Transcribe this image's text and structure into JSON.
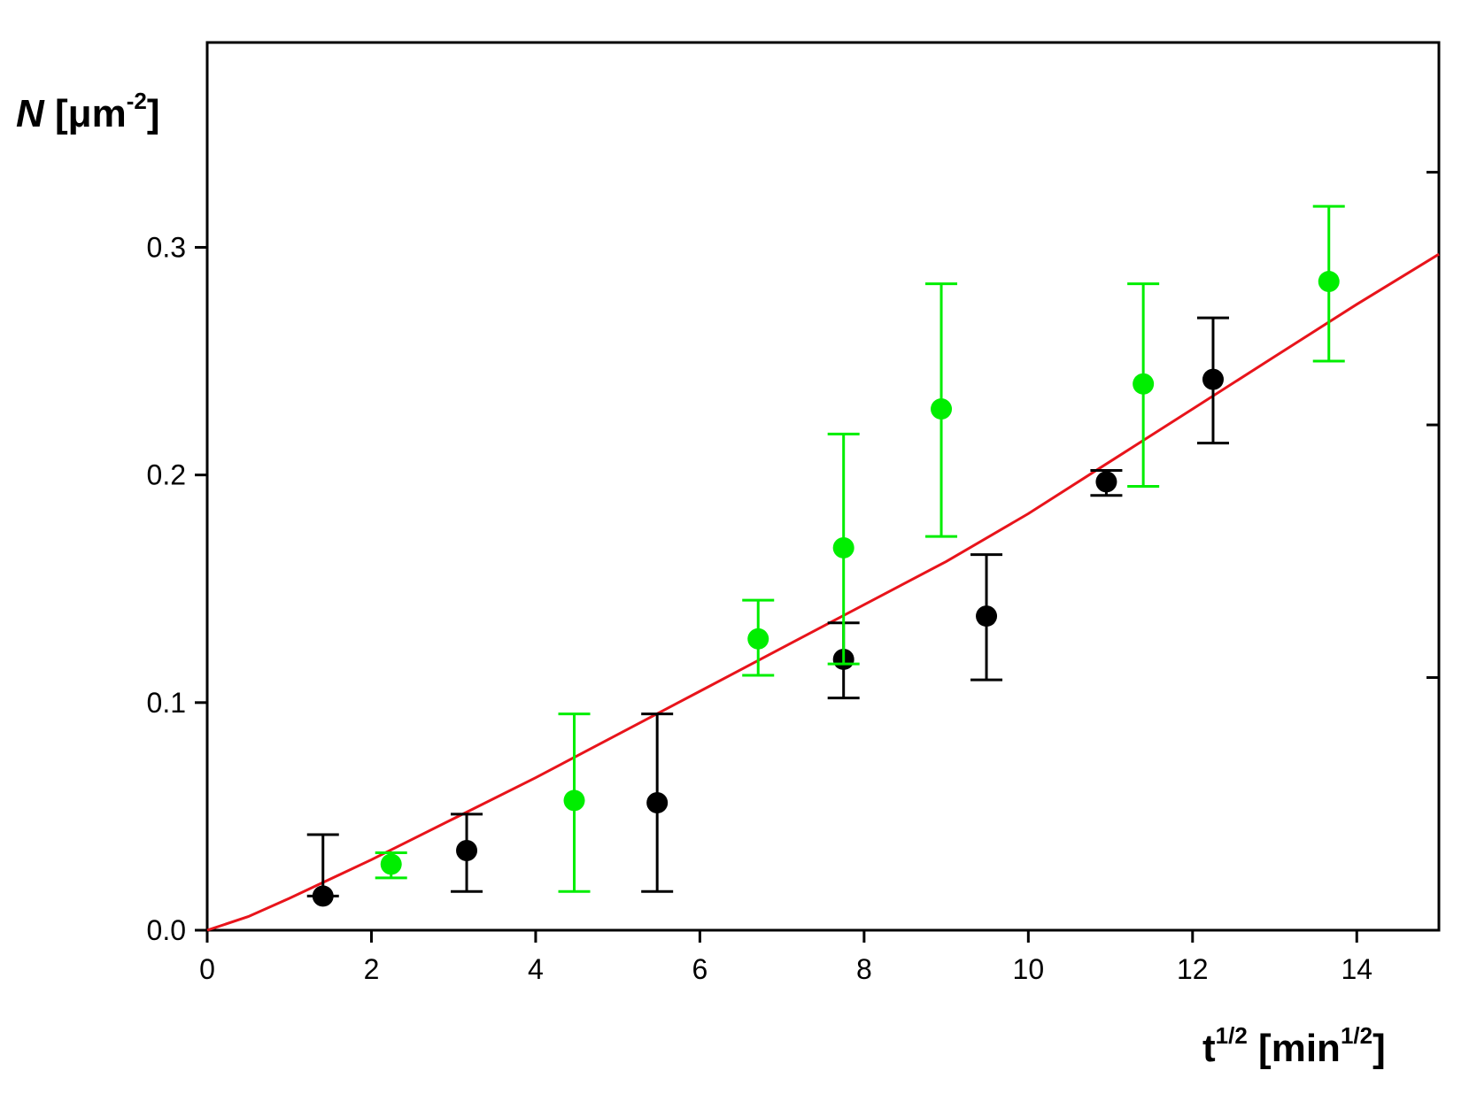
{
  "chart_data": {
    "type": "scatter",
    "ylabel": {
      "var": "N",
      "open": "[",
      "unit": "μm",
      "sup": "-2",
      "close": "]"
    },
    "xlabel": {
      "var": "t",
      "var_sup": "1/2",
      "open": "[",
      "unit": "min",
      "unit_sup": "1/2",
      "close": "]"
    },
    "xlim": [
      0,
      15
    ],
    "ylim": [
      0,
      0.39
    ],
    "x_ticks": [
      0,
      2,
      4,
      6,
      8,
      10,
      12,
      14
    ],
    "x_tick_labels": [
      "0",
      "2",
      "4",
      "6",
      "8",
      "10",
      "12",
      "14"
    ],
    "y_ticks": [
      0.0,
      0.1,
      0.2,
      0.3
    ],
    "y_tick_labels": [
      "0.0",
      "0.1",
      "0.2",
      "0.3"
    ],
    "right_axis_ticks": [
      0.111,
      0.222,
      0.333
    ],
    "series": [
      {
        "color": "#000000",
        "points": [
          {
            "x": 1.41,
            "y": 0.015,
            "err_low": 0.015,
            "err_high": 0.042
          },
          {
            "x": 3.16,
            "y": 0.035,
            "err_low": 0.017,
            "err_high": 0.051
          },
          {
            "x": 5.48,
            "y": 0.056,
            "err_low": 0.017,
            "err_high": 0.095
          },
          {
            "x": 7.75,
            "y": 0.119,
            "err_low": 0.102,
            "err_high": 0.135
          },
          {
            "x": 9.49,
            "y": 0.138,
            "err_low": 0.11,
            "err_high": 0.165
          },
          {
            "x": 10.95,
            "y": 0.197,
            "err_low": 0.191,
            "err_high": 0.202
          },
          {
            "x": 12.25,
            "y": 0.242,
            "err_low": 0.214,
            "err_high": 0.269
          }
        ]
      },
      {
        "color": "#00ee00",
        "points": [
          {
            "x": 2.24,
            "y": 0.029,
            "err_low": 0.023,
            "err_high": 0.034
          },
          {
            "x": 4.47,
            "y": 0.057,
            "err_low": 0.017,
            "err_high": 0.095
          },
          {
            "x": 6.71,
            "y": 0.128,
            "err_low": 0.112,
            "err_high": 0.145
          },
          {
            "x": 7.75,
            "y": 0.168,
            "err_low": 0.117,
            "err_high": 0.218
          },
          {
            "x": 8.94,
            "y": 0.229,
            "err_low": 0.173,
            "err_high": 0.284
          },
          {
            "x": 11.4,
            "y": 0.24,
            "err_low": 0.195,
            "err_high": 0.284
          },
          {
            "x": 13.66,
            "y": 0.285,
            "err_low": 0.25,
            "err_high": 0.318
          }
        ]
      }
    ],
    "fit_curve": {
      "color": "#e8141b",
      "points": [
        [
          0,
          0
        ],
        [
          0.5,
          0.006
        ],
        [
          1,
          0.014
        ],
        [
          2,
          0.031
        ],
        [
          3,
          0.049
        ],
        [
          4,
          0.067
        ],
        [
          5,
          0.086
        ],
        [
          6,
          0.105
        ],
        [
          7,
          0.124
        ],
        [
          8,
          0.143
        ],
        [
          9,
          0.162
        ],
        [
          10,
          0.183
        ],
        [
          11,
          0.206
        ],
        [
          12,
          0.229
        ],
        [
          13,
          0.252
        ],
        [
          14,
          0.275
        ],
        [
          15,
          0.297
        ]
      ]
    },
    "grid": false,
    "legend": "none"
  }
}
